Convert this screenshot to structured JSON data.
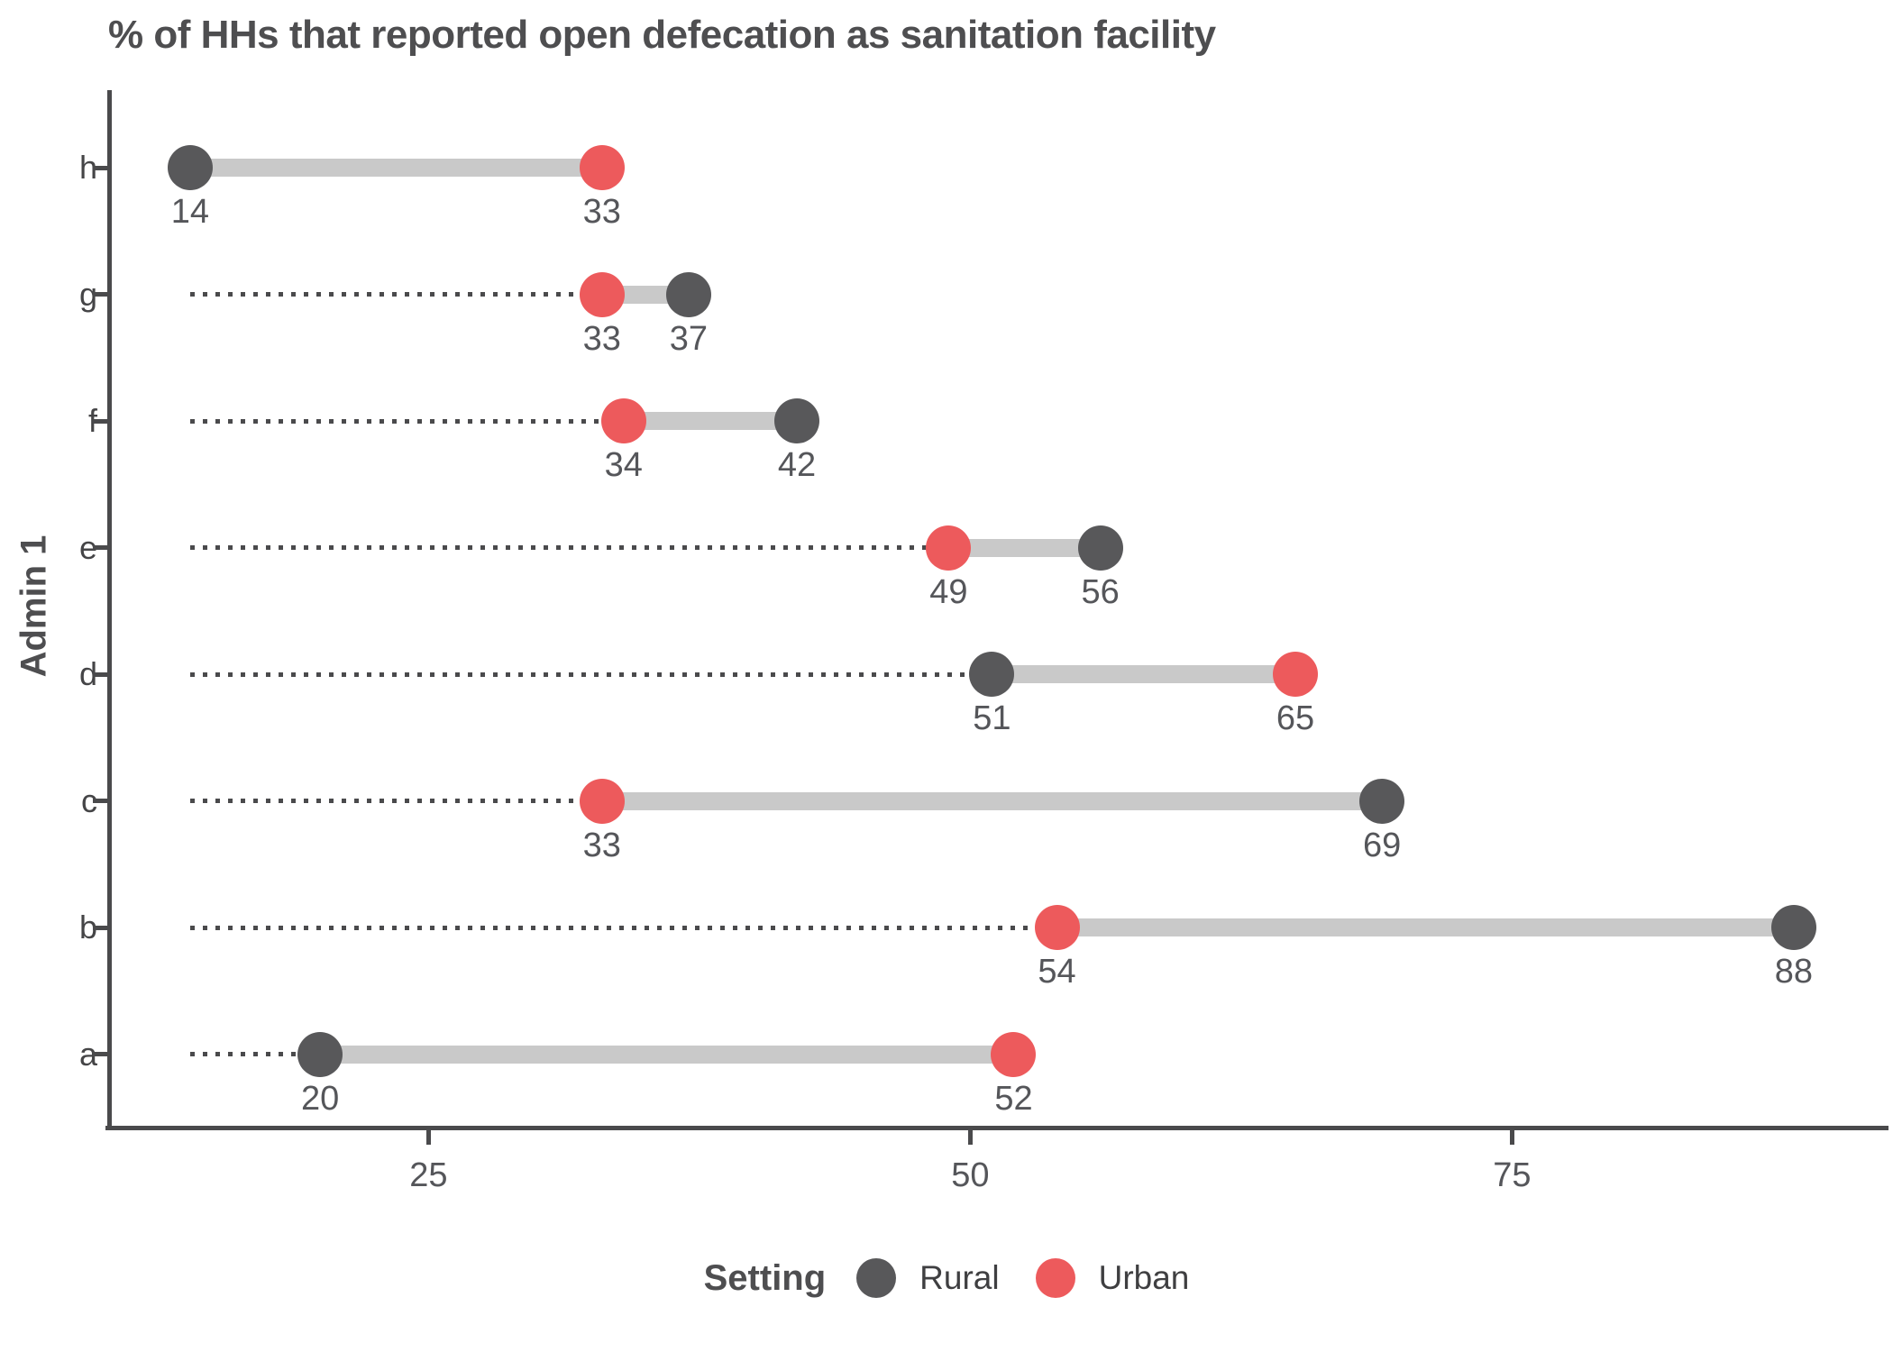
{
  "title": "% of HHs that reported open defecation as sanitation facility",
  "chart_data": {
    "type": "dumbbell",
    "title": "% of HHs that reported open defecation as sanitation facility",
    "xlabel": "",
    "ylabel": "Admin 1",
    "x_ticks": [
      25,
      50,
      75
    ],
    "xlim": [
      10.3,
      92.2
    ],
    "grid": false,
    "categories_top_to_bottom": [
      "h",
      "g",
      "f",
      "e",
      "d",
      "c",
      "b",
      "a"
    ],
    "series": [
      {
        "name": "Rural",
        "values": [
          14,
          37,
          42,
          56,
          51,
          69,
          88,
          20
        ]
      },
      {
        "name": "Urban",
        "values": [
          33,
          33,
          34,
          49,
          65,
          33,
          54,
          52
        ]
      }
    ],
    "value_labels_shown": true,
    "leader_line_start_value": 14,
    "legend": {
      "title": "Setting",
      "position": "bottom",
      "entries": [
        "Rural",
        "Urban"
      ]
    }
  },
  "colors": {
    "rural": "#58585A",
    "urban": "#ED5A5C",
    "connector": "#C9C9C9",
    "leader": "#4A4A4C",
    "axis": "#4A4A4C",
    "value_label": "#55565A",
    "title_text": "#4E4E50"
  }
}
